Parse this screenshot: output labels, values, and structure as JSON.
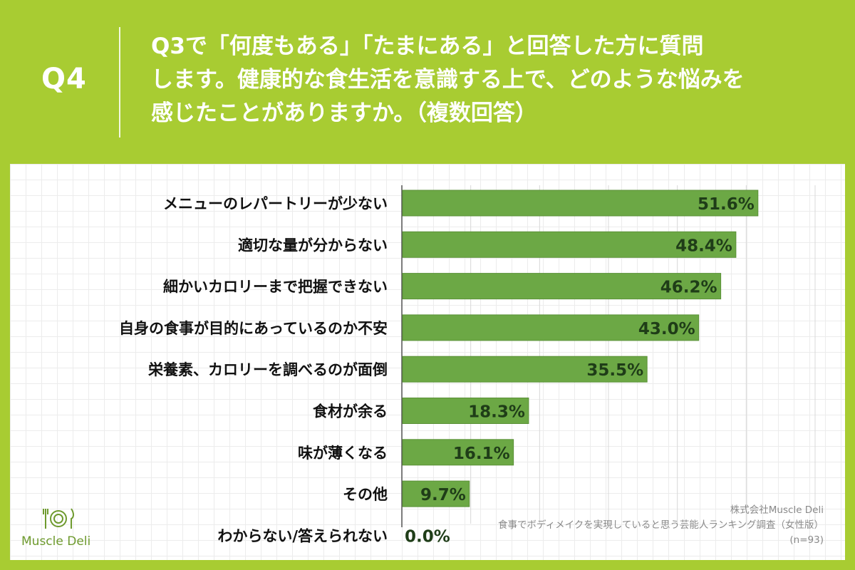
{
  "header": {
    "q_label": "Q4",
    "question": "Q3で「何度もある」「たまにある」と回答した方に質問\nします。健康的な食生活を意識する上で、どのような悩みを\n感じたことがありますか。（複数回答）"
  },
  "logo": {
    "name": "Muscle Deli"
  },
  "footer": {
    "company": "株式会社Muscle Deli",
    "survey": "食事でボディメイクを実現していると思う芸能人ランキング調査（女性版）",
    "sample": "(n=93)"
  },
  "colors": {
    "background": "#a8cc32",
    "bar": "#6ca845",
    "bar_border": "#5b9138",
    "value_text": "#1f3d18"
  },
  "chart_data": {
    "type": "bar",
    "orientation": "horizontal",
    "categories": [
      "メニューのレパートリーが少ない",
      "適切な量が分からない",
      "細かいカロリーまで把握できない",
      "自身の食事が目的にあっているのか不安",
      "栄養素、カロリーを調べるのが面倒",
      "食材が余る",
      "味が薄くなる",
      "その他",
      "わからない/答えられない"
    ],
    "values": [
      51.6,
      48.4,
      46.2,
      43.0,
      35.5,
      18.3,
      16.1,
      9.7,
      0.0
    ],
    "value_labels": [
      "51.6%",
      "48.4%",
      "46.2%",
      "43.0%",
      "35.5%",
      "18.3%",
      "16.1%",
      "9.7%",
      "0.0%"
    ],
    "xlim": [
      0,
      60
    ],
    "grid": true,
    "title": "",
    "xlabel": "",
    "ylabel": ""
  }
}
